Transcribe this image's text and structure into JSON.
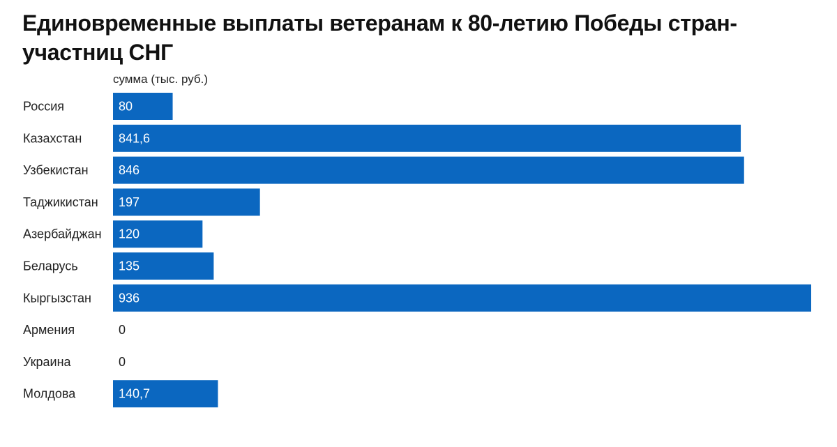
{
  "chart_data": {
    "type": "bar",
    "orientation": "horizontal",
    "title": "Единовременные выплаты ветеранам к 80-летию Победы стран-участниц СНГ",
    "value_header": "сумма (тыс. руб.)",
    "categories": [
      "Россия",
      "Казахстан",
      "Узбекистан",
      "Таджикистан",
      "Азербайджан",
      "Беларусь",
      "Кыргызстан",
      "Армения",
      "Украина",
      "Молдова"
    ],
    "values": [
      80,
      841.6,
      846,
      197,
      120,
      135,
      936,
      0,
      0,
      140.7
    ],
    "value_labels": [
      "80",
      "841,6",
      "846",
      "197",
      "120",
      "135",
      "936",
      "0",
      "0",
      "140,7"
    ],
    "xlim": [
      0,
      936
    ],
    "grid": false,
    "legend": "none",
    "bar_color": "#0b67c0",
    "label_on_bar_color": "#ffffff",
    "label_off_bar_color": "#222222"
  }
}
